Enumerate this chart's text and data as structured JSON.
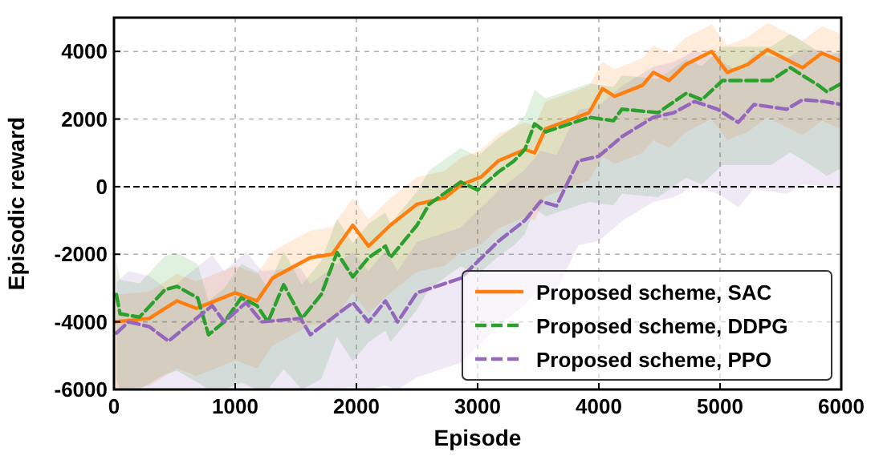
{
  "chart_data": {
    "type": "line",
    "xlabel": "Episode",
    "ylabel": "Episodic reward",
    "xlim": [
      0,
      6000
    ],
    "xticks": [
      0,
      1000,
      2000,
      3000,
      4000,
      5000,
      6000
    ],
    "ylim": [
      -6000,
      5000
    ],
    "yticks": [
      -6000,
      -4000,
      -2000,
      0,
      2000,
      4000
    ],
    "grid": true,
    "legend": "bottom right",
    "ref_lines": [
      {
        "axis": "y",
        "value": 0,
        "color": "#000000",
        "line_style": "dashed"
      }
    ],
    "series": [
      {
        "name": "Proposed scheme, SAC",
        "color": "#ff7f0e",
        "line_style": "solid",
        "x": [
          0,
          290,
          520,
          680,
          1000,
          1180,
          1310,
          1620,
          1800,
          1970,
          2100,
          2280,
          2500,
          2730,
          2860,
          3030,
          3170,
          3390,
          3470,
          3560,
          3920,
          4030,
          4130,
          4360,
          4450,
          4580,
          4720,
          4930,
          5060,
          5230,
          5390,
          5680,
          5840,
          6000
        ],
        "values": [
          -4000,
          -3900,
          -3380,
          -3600,
          -3140,
          -3380,
          -2700,
          -2100,
          -2000,
          -1140,
          -1760,
          -1140,
          -520,
          -330,
          50,
          290,
          760,
          1100,
          1000,
          1710,
          2190,
          2900,
          2670,
          3000,
          3380,
          3140,
          3620,
          4000,
          3380,
          3620,
          4050,
          3520,
          3950,
          3710
        ],
        "lower": [
          -6000,
          -5900,
          -5380,
          -5600,
          -5140,
          -5380,
          -4700,
          -4100,
          -4000,
          -3140,
          -3760,
          -3140,
          -2520,
          -2330,
          -1950,
          -1710,
          -1240,
          -900,
          -1000,
          -290,
          190,
          900,
          670,
          1000,
          1380,
          1140,
          1620,
          2000,
          1380,
          1620,
          2050,
          1520,
          1950,
          1710
        ],
        "upper": [
          -3200,
          -3100,
          -2580,
          -2800,
          -2340,
          -2580,
          -1900,
          -1300,
          -1200,
          -340,
          -960,
          -340,
          280,
          470,
          850,
          1090,
          1560,
          1900,
          1800,
          2510,
          2990,
          3700,
          3470,
          3800,
          4180,
          3940,
          4420,
          4800,
          4180,
          4420,
          4850,
          4320,
          4750,
          4510
        ]
      },
      {
        "name": "Proposed scheme, DDPG",
        "color": "#2ca02c",
        "line_style": "dashed",
        "x": [
          20,
          50,
          210,
          420,
          520,
          690,
          780,
          910,
          1050,
          1180,
          1270,
          1400,
          1550,
          1710,
          1840,
          1970,
          2100,
          2240,
          2280,
          2500,
          2600,
          2860,
          3000,
          3170,
          3300,
          3390,
          3470,
          3560,
          3920,
          4120,
          4190,
          4490,
          4720,
          4850,
          5020,
          5420,
          5580,
          5810,
          5880,
          6000
        ],
        "values": [
          -3190,
          -3760,
          -3860,
          -3050,
          -2950,
          -3290,
          -4380,
          -4000,
          -3290,
          -3520,
          -4000,
          -2900,
          -3900,
          -3190,
          -1950,
          -2670,
          -2100,
          -1760,
          -2100,
          -1140,
          -520,
          140,
          -100,
          430,
          760,
          1100,
          1860,
          1620,
          2050,
          1950,
          2290,
          2190,
          2760,
          2570,
          3140,
          3140,
          3520,
          3000,
          2810,
          3050
        ],
        "lower": [
          -5690,
          -6000,
          -6000,
          -5550,
          -5450,
          -5790,
          -6000,
          -6000,
          -5790,
          -6000,
          -6000,
          -5400,
          -6000,
          -5690,
          -4450,
          -5170,
          -4600,
          -4260,
          -4600,
          -3640,
          -3020,
          -2360,
          -2600,
          -2070,
          -1740,
          -1400,
          -640,
          -880,
          -450,
          -550,
          -210,
          -310,
          260,
          70,
          640,
          640,
          1020,
          500,
          310,
          550
        ],
        "upper": [
          -2190,
          -2760,
          -2860,
          -2050,
          -1950,
          -2290,
          -3380,
          -3000,
          -2290,
          -2520,
          -3000,
          -1900,
          -2900,
          -2190,
          -950,
          -1670,
          -1100,
          -760,
          -1100,
          -140,
          480,
          1140,
          900,
          1430,
          1760,
          2100,
          2860,
          2620,
          3050,
          2950,
          3290,
          3190,
          3760,
          3570,
          4140,
          4140,
          4520,
          4000,
          3810,
          4050
        ]
      },
      {
        "name": "Proposed scheme, PPO",
        "color": "#9467bd",
        "line_style": "dashed",
        "x": [
          20,
          120,
          290,
          450,
          610,
          810,
          910,
          1090,
          1220,
          1540,
          1620,
          1970,
          2100,
          2240,
          2340,
          2500,
          2860,
          3170,
          3390,
          3520,
          3650,
          3830,
          4000,
          4190,
          4450,
          4620,
          4790,
          4980,
          5150,
          5280,
          5550,
          5680,
          5860,
          6000
        ],
        "values": [
          -4330,
          -4000,
          -4140,
          -4570,
          -4100,
          -3520,
          -4000,
          -3430,
          -4000,
          -3900,
          -4380,
          -3430,
          -4000,
          -3380,
          -4000,
          -3140,
          -2710,
          -1620,
          -1000,
          -430,
          -570,
          760,
          900,
          1480,
          2050,
          2190,
          2520,
          2290,
          1900,
          2430,
          2290,
          2570,
          2520,
          2430
        ],
        "lower": [
          -6000,
          -6000,
          -6000,
          -6000,
          -6000,
          -6000,
          -6000,
          -5930,
          -6000,
          -6000,
          -6000,
          -5930,
          -6000,
          -5880,
          -6000,
          -5640,
          -5210,
          -4120,
          -3500,
          -2930,
          -3070,
          -1740,
          -1600,
          -1020,
          -450,
          -310,
          20,
          -210,
          -600,
          -70,
          -210,
          70,
          20,
          -70
        ],
        "upper": [
          -2830,
          -2500,
          -2640,
          -3070,
          -2600,
          -2020,
          -2500,
          -1930,
          -2500,
          -2400,
          -2880,
          -1930,
          -2500,
          -1880,
          -2500,
          -1640,
          -1210,
          -120,
          500,
          1070,
          930,
          2260,
          2400,
          2980,
          3550,
          3690,
          4020,
          3790,
          3400,
          3930,
          3790,
          4070,
          4020,
          3930
        ]
      }
    ]
  }
}
